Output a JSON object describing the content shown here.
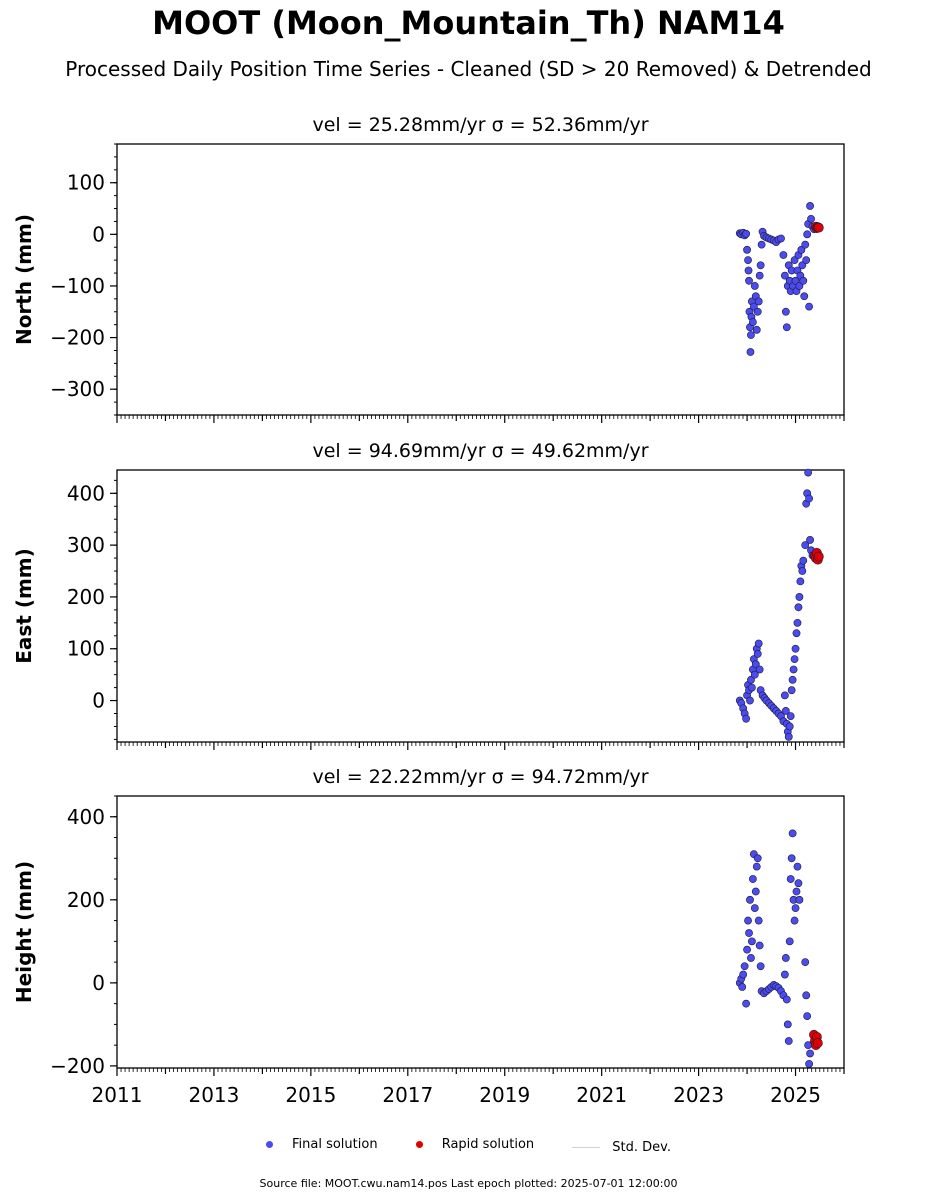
{
  "title": "MOOT (Moon_Mountain_Th) NAM14",
  "subtitle": "Processed Daily Position Time Series - Cleaned (SD > 20 Removed) & Detrended",
  "legend": {
    "final": "Final solution",
    "rapid": "Rapid solution",
    "std": "Std. Dev."
  },
  "footer": "Source file: MOOT.cwu.nam14.pos  Last epoch plotted: 2025-07-01 12:00:00",
  "colors": {
    "final": "#4b4bef",
    "final_edge": "#1a1a3a",
    "rapid": "#e00000",
    "std": "#d0d0d0"
  },
  "chart_data": [
    {
      "type": "scatter",
      "panel": "north",
      "title": "vel = 25.28mm/yr   σ = 52.36mm/yr",
      "ylabel": "North (mm)",
      "xlim": [
        2011,
        2026
      ],
      "ylim": [
        -350,
        175
      ],
      "yticks": [
        100,
        0,
        -100,
        -200,
        -300
      ],
      "ytick_labels": [
        "100",
        "0",
        "−100",
        "−200",
        "−300"
      ],
      "series": [
        {
          "name": "Final solution",
          "points": [
            [
              2023.85,
              2
            ],
            [
              2023.88,
              0
            ],
            [
              2023.92,
              3
            ],
            [
              2023.95,
              -2
            ],
            [
              2023.98,
              1
            ],
            [
              2024.0,
              -30
            ],
            [
              2024.02,
              -50
            ],
            [
              2024.03,
              -70
            ],
            [
              2024.04,
              -90
            ],
            [
              2024.05,
              -150
            ],
            [
              2024.06,
              -180
            ],
            [
              2024.07,
              -228
            ],
            [
              2024.08,
              -195
            ],
            [
              2024.09,
              -160
            ],
            [
              2024.1,
              -130
            ],
            [
              2024.12,
              -170
            ],
            [
              2024.14,
              -140
            ],
            [
              2024.16,
              -100
            ],
            [
              2024.18,
              -120
            ],
            [
              2024.2,
              -185
            ],
            [
              2024.22,
              -150
            ],
            [
              2024.24,
              -130
            ],
            [
              2024.26,
              -80
            ],
            [
              2024.28,
              -60
            ],
            [
              2024.3,
              -20
            ],
            [
              2024.32,
              5
            ],
            [
              2024.35,
              -3
            ],
            [
              2024.4,
              -6
            ],
            [
              2024.45,
              -8
            ],
            [
              2024.5,
              -10
            ],
            [
              2024.55,
              -12
            ],
            [
              2024.6,
              -15
            ],
            [
              2024.65,
              -10
            ],
            [
              2024.7,
              -8
            ],
            [
              2024.75,
              -40
            ],
            [
              2024.78,
              -80
            ],
            [
              2024.8,
              -150
            ],
            [
              2024.82,
              -180
            ],
            [
              2024.84,
              -100
            ],
            [
              2024.86,
              -60
            ],
            [
              2024.88,
              -90
            ],
            [
              2024.9,
              -110
            ],
            [
              2024.92,
              -70
            ],
            [
              2024.95,
              -100
            ],
            [
              2024.98,
              -50
            ],
            [
              2025.0,
              -90
            ],
            [
              2025.02,
              -110
            ],
            [
              2025.04,
              -70
            ],
            [
              2025.06,
              -40
            ],
            [
              2025.08,
              -100
            ],
            [
              2025.1,
              -80
            ],
            [
              2025.12,
              -30
            ],
            [
              2025.14,
              -60
            ],
            [
              2025.16,
              -90
            ],
            [
              2025.18,
              -120
            ],
            [
              2025.2,
              -20
            ],
            [
              2025.22,
              -50
            ],
            [
              2025.24,
              0
            ],
            [
              2025.26,
              20
            ],
            [
              2025.28,
              -140
            ],
            [
              2025.3,
              55
            ],
            [
              2025.32,
              30
            ],
            [
              2025.35,
              15
            ],
            [
              2025.38,
              10
            ]
          ]
        },
        {
          "name": "Rapid solution",
          "points": [
            [
              2025.42,
              15
            ],
            [
              2025.44,
              12
            ],
            [
              2025.46,
              14
            ],
            [
              2025.48,
              13
            ]
          ]
        }
      ]
    },
    {
      "type": "scatter",
      "panel": "east",
      "title": "vel = 94.69mm/yr   σ = 49.62mm/yr",
      "ylabel": "East (mm)",
      "xlim": [
        2011,
        2026
      ],
      "ylim": [
        -80,
        445
      ],
      "yticks": [
        400,
        300,
        200,
        100,
        0
      ],
      "ytick_labels": [
        "400",
        "300",
        "200",
        "100",
        "0"
      ],
      "series": [
        {
          "name": "Final solution",
          "points": [
            [
              2023.85,
              0
            ],
            [
              2023.88,
              -5
            ],
            [
              2023.92,
              -15
            ],
            [
              2023.95,
              -25
            ],
            [
              2023.98,
              -35
            ],
            [
              2024.0,
              10
            ],
            [
              2024.02,
              30
            ],
            [
              2024.04,
              20
            ],
            [
              2024.06,
              0
            ],
            [
              2024.08,
              40
            ],
            [
              2024.1,
              25
            ],
            [
              2024.12,
              60
            ],
            [
              2024.14,
              80
            ],
            [
              2024.16,
              50
            ],
            [
              2024.18,
              70
            ],
            [
              2024.2,
              100
            ],
            [
              2024.22,
              90
            ],
            [
              2024.24,
              110
            ],
            [
              2024.26,
              60
            ],
            [
              2024.28,
              20
            ],
            [
              2024.32,
              10
            ],
            [
              2024.36,
              5
            ],
            [
              2024.4,
              0
            ],
            [
              2024.45,
              -5
            ],
            [
              2024.5,
              -10
            ],
            [
              2024.55,
              -15
            ],
            [
              2024.6,
              -20
            ],
            [
              2024.65,
              -25
            ],
            [
              2024.7,
              -30
            ],
            [
              2024.75,
              -40
            ],
            [
              2024.78,
              10
            ],
            [
              2024.8,
              -20
            ],
            [
              2024.82,
              -45
            ],
            [
              2024.84,
              -60
            ],
            [
              2024.86,
              -70
            ],
            [
              2024.88,
              -50
            ],
            [
              2024.9,
              -30
            ],
            [
              2024.92,
              20
            ],
            [
              2024.94,
              40
            ],
            [
              2024.96,
              60
            ],
            [
              2024.98,
              80
            ],
            [
              2025.0,
              100
            ],
            [
              2025.02,
              130
            ],
            [
              2025.04,
              150
            ],
            [
              2025.06,
              180
            ],
            [
              2025.08,
              200
            ],
            [
              2025.1,
              230
            ],
            [
              2025.12,
              260
            ],
            [
              2025.14,
              250
            ],
            [
              2025.16,
              270
            ],
            [
              2025.2,
              300
            ],
            [
              2025.22,
              380
            ],
            [
              2025.24,
              400
            ],
            [
              2025.26,
              440
            ],
            [
              2025.28,
              390
            ],
            [
              2025.3,
              310
            ],
            [
              2025.32,
              290
            ],
            [
              2025.35,
              280
            ]
          ]
        },
        {
          "name": "Rapid solution",
          "points": [
            [
              2025.4,
              280
            ],
            [
              2025.42,
              275
            ],
            [
              2025.44,
              285
            ],
            [
              2025.46,
              272
            ],
            [
              2025.48,
              278
            ]
          ]
        }
      ]
    },
    {
      "type": "scatter",
      "panel": "height",
      "title": "vel = 22.22mm/yr   σ = 94.72mm/yr",
      "ylabel": "Height (mm)",
      "xlim": [
        2011,
        2026
      ],
      "ylim": [
        -205,
        450
      ],
      "yticks": [
        400,
        200,
        0,
        -200
      ],
      "ytick_labels": [
        "400",
        "200",
        "0",
        "−200"
      ],
      "xticks": [
        2011,
        2013,
        2015,
        2017,
        2019,
        2021,
        2023,
        2025
      ],
      "xtick_labels": [
        "2011",
        "2013",
        "2015",
        "2017",
        "2019",
        "2021",
        "2023",
        "2025"
      ],
      "series": [
        {
          "name": "Final solution",
          "points": [
            [
              2023.85,
              0
            ],
            [
              2023.88,
              10
            ],
            [
              2023.9,
              -10
            ],
            [
              2023.92,
              20
            ],
            [
              2023.95,
              40
            ],
            [
              2023.98,
              -50
            ],
            [
              2024.0,
              80
            ],
            [
              2024.02,
              150
            ],
            [
              2024.04,
              120
            ],
            [
              2024.06,
              200
            ],
            [
              2024.08,
              60
            ],
            [
              2024.1,
              100
            ],
            [
              2024.12,
              250
            ],
            [
              2024.14,
              310
            ],
            [
              2024.16,
              180
            ],
            [
              2024.18,
              220
            ],
            [
              2024.2,
              280
            ],
            [
              2024.22,
              300
            ],
            [
              2024.24,
              150
            ],
            [
              2024.26,
              90
            ],
            [
              2024.28,
              40
            ],
            [
              2024.3,
              -20
            ],
            [
              2024.35,
              -25
            ],
            [
              2024.4,
              -20
            ],
            [
              2024.45,
              -15
            ],
            [
              2024.5,
              -10
            ],
            [
              2024.55,
              -5
            ],
            [
              2024.6,
              -8
            ],
            [
              2024.65,
              -12
            ],
            [
              2024.7,
              -20
            ],
            [
              2024.75,
              -30
            ],
            [
              2024.78,
              20
            ],
            [
              2024.8,
              60
            ],
            [
              2024.82,
              -40
            ],
            [
              2024.84,
              -100
            ],
            [
              2024.86,
              -140
            ],
            [
              2024.88,
              100
            ],
            [
              2024.9,
              250
            ],
            [
              2024.92,
              300
            ],
            [
              2024.94,
              360
            ],
            [
              2024.96,
              200
            ],
            [
              2024.98,
              150
            ],
            [
              2025.0,
              180
            ],
            [
              2025.02,
              220
            ],
            [
              2025.04,
              280
            ],
            [
              2025.06,
              240
            ],
            [
              2025.08,
              200
            ],
            [
              2025.2,
              50
            ],
            [
              2025.22,
              -30
            ],
            [
              2025.24,
              -80
            ],
            [
              2025.26,
              -150
            ],
            [
              2025.28,
              -195
            ],
            [
              2025.3,
              -170
            ]
          ]
        },
        {
          "name": "Rapid solution",
          "points": [
            [
              2025.38,
              -125
            ],
            [
              2025.4,
              -140
            ],
            [
              2025.42,
              -150
            ],
            [
              2025.44,
              -130
            ],
            [
              2025.46,
              -145
            ]
          ]
        }
      ]
    }
  ]
}
